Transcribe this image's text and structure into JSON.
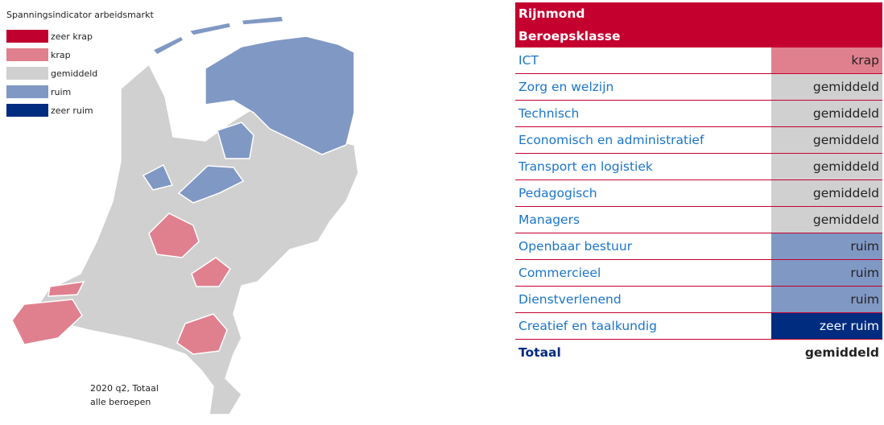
{
  "legend": {
    "title": "Spanningsindicator arbeidsmarkt",
    "items": [
      {
        "label": "zeer krap",
        "color": "#c0002f"
      },
      {
        "label": "krap",
        "color": "#e0808e"
      },
      {
        "label": "gemiddeld",
        "color": "#d0d0d0"
      },
      {
        "label": "ruim",
        "color": "#8098c4"
      },
      {
        "label": "zeer ruim",
        "color": "#002c80"
      }
    ]
  },
  "map": {
    "note": [
      "2020 q2, Totaal",
      "alle beroepen"
    ]
  },
  "table": {
    "title": "Rijnmond",
    "header": "Beroepsklasse",
    "rows": [
      [
        "ICT",
        "krap"
      ],
      [
        "Zorg en welzijn",
        "gemiddeld"
      ],
      [
        "Technisch",
        "gemiddeld"
      ],
      [
        "Economisch en administratief",
        "gemiddeld"
      ],
      [
        "Transport en logistiek",
        "gemiddeld"
      ],
      [
        "Pedagogisch",
        "gemiddeld"
      ],
      [
        "Managers",
        "gemiddeld"
      ],
      [
        "Openbaar bestuur",
        "ruim"
      ],
      [
        "Commercieel",
        "ruim"
      ],
      [
        "Dienstverlenend",
        "ruim"
      ],
      [
        "Creatief en taalkundig",
        "zeer ruim"
      ]
    ],
    "total": [
      "Totaal",
      "gemiddeld"
    ]
  }
}
